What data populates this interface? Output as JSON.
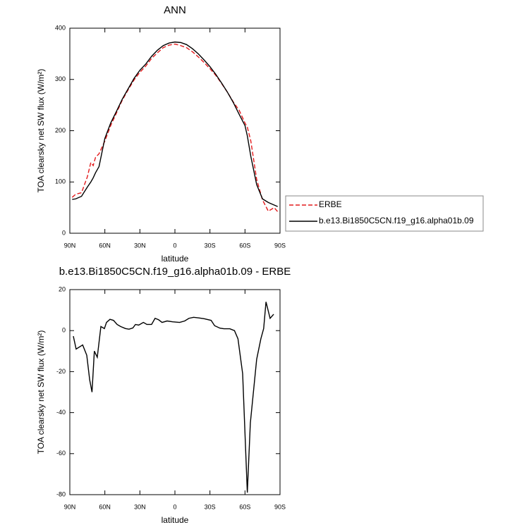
{
  "chart_data": [
    {
      "type": "line",
      "title": "ANN",
      "xlabel": "latitude",
      "ylabel": "TOA clearsky net SW flux (W/m²)",
      "x": [
        88,
        85,
        80,
        75,
        72,
        70,
        68,
        65,
        60,
        55,
        50,
        45,
        40,
        35,
        30,
        25,
        20,
        15,
        10,
        5,
        0,
        -5,
        -10,
        -15,
        -20,
        -25,
        -30,
        -35,
        -40,
        -45,
        -50,
        -55,
        -60,
        -62,
        -65,
        -70,
        -75,
        -80,
        -85,
        -88
      ],
      "series": [
        {
          "name": "ERBE",
          "color": "#e31a1c",
          "line_style": "dashed",
          "values": [
            70,
            76,
            79,
            110,
            138,
            132,
            148,
            155,
            180,
            210,
            235,
            260,
            280,
            299,
            314,
            326,
            341,
            352,
            362,
            367,
            369,
            366,
            362,
            354,
            344,
            333,
            321,
            308,
            292,
            275,
            256,
            240,
            215,
            207,
            180,
            105,
            65,
            43,
            50,
            42
          ]
        },
        {
          "name": "b.e13.Bi1850C5CN.f19_g16.alpha01b.09",
          "color": "#000000",
          "line_style": "solid",
          "values": [
            66,
            67,
            72,
            90,
            100,
            108,
            118,
            130,
            185,
            215,
            238,
            262,
            282,
            302,
            318,
            330,
            345,
            357,
            366,
            371,
            373,
            372,
            368,
            360,
            350,
            338,
            325,
            310,
            293,
            275,
            255,
            232,
            210,
            190,
            150,
            95,
            67,
            60,
            55,
            52
          ]
        }
      ],
      "xlim": [
        90,
        -90
      ],
      "xticks": [
        {
          "value": 90,
          "label": "90N"
        },
        {
          "value": 60,
          "label": "60N"
        },
        {
          "value": 30,
          "label": "30N"
        },
        0,
        {
          "value": -30,
          "label": "30S"
        },
        {
          "value": -60,
          "label": "60S"
        },
        {
          "value": -90,
          "label": "90S"
        }
      ],
      "ylim": [
        0,
        400
      ],
      "yticks": [
        0,
        100,
        200,
        300,
        400
      ],
      "legend": "right"
    },
    {
      "type": "line",
      "title": "b.e13.Bi1850C5CN.f19_g16.alpha01b.09 - ERBE",
      "xlabel": "latitude",
      "ylabel": "TOA clearsky net SW flux (W/m²)",
      "x": [
        87,
        84.6,
        79,
        75.5,
        73,
        71,
        69,
        66.5,
        63.4,
        60.4,
        58.6,
        55.6,
        52.6,
        49.5,
        46.5,
        42.3,
        39.3,
        36,
        33.8,
        31,
        27,
        24,
        20,
        17,
        14,
        11,
        6.7,
        2,
        -4,
        -8.4,
        -12,
        -16,
        -20.5,
        -25,
        -31,
        -34,
        -38.6,
        -42,
        -47,
        -51,
        -54,
        -58,
        -62,
        -64.6,
        -70,
        -73.6,
        -76,
        -78,
        -81.5,
        -84.6
      ],
      "series": [
        {
          "name": "b.e13.Bi1850C5CN.f19_g16.alpha01b.09 - ERBE",
          "color": "#000000",
          "line_style": "solid",
          "values": [
            -2.7,
            -9,
            -7,
            -12,
            -24,
            -30,
            -10,
            -13,
            2,
            1,
            4,
            5.5,
            5,
            3,
            2,
            1,
            0.7,
            1.3,
            3,
            2.7,
            4,
            3,
            3,
            6,
            5.3,
            4,
            4.7,
            4.3,
            4,
            4.7,
            6,
            6.5,
            6.2,
            5.8,
            5,
            2.4,
            1.2,
            0.9,
            0.9,
            0,
            -4,
            -21,
            -79,
            -45,
            -14,
            -4,
            1,
            14,
            6,
            8
          ]
        }
      ],
      "xlim": [
        90,
        -90
      ],
      "xticks": [
        {
          "value": 90,
          "label": "90N"
        },
        {
          "value": 60,
          "label": "60N"
        },
        {
          "value": 30,
          "label": "30N"
        },
        0,
        {
          "value": -30,
          "label": "30S"
        },
        {
          "value": -60,
          "label": "60S"
        },
        {
          "value": -90,
          "label": "90S"
        }
      ],
      "ylim": [
        -80,
        20
      ],
      "yticks": [
        -80,
        -60,
        -40,
        -20,
        0,
        20
      ]
    }
  ]
}
